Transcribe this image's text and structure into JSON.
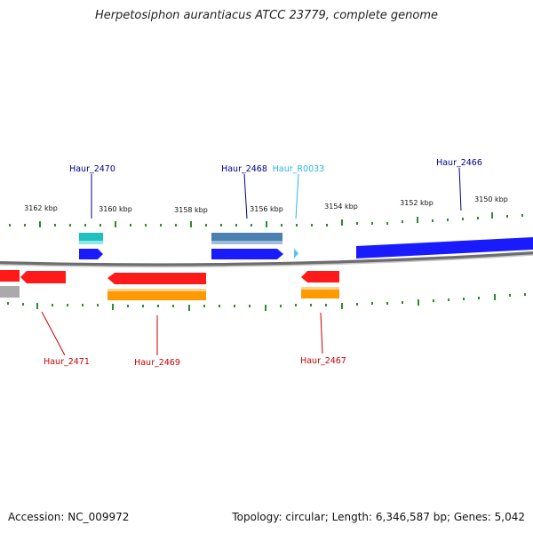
{
  "title": "Herpetosiphon aurantiacus ATCC 23779, complete genome",
  "footer": {
    "accession": "Accession: NC_009972",
    "summary": "Topology: circular; Length: 6,346,587 bp; Genes: 5,042"
  },
  "colors": {
    "backbone": "#7a7a7a",
    "tick": "#2e8b2e",
    "plus_label": "#00008b",
    "rna_label": "#29b6e8",
    "minus_label": "#cc0000",
    "cds_plus": "#1a1aff",
    "cds_minus": "#ff1a1a",
    "rna": "#4fc3f7",
    "feat_teal": "#20c0c0",
    "feat_steel": "#4a7fb0",
    "feat_orange": "#ff9900",
    "feat_grey": "#aaaaaa"
  },
  "scale": {
    "kbp_labels": [
      "3162 kbp",
      "3160 kbp",
      "3158 kbp",
      "3156 kbp",
      "3154 kbp",
      "3152 kbp",
      "3150 kbp"
    ]
  },
  "genes": [
    {
      "id": "Haur_2470",
      "strand": "+",
      "type": "CDS"
    },
    {
      "id": "Haur_2468",
      "strand": "+",
      "type": "CDS"
    },
    {
      "id": "Haur_R0033",
      "strand": "+",
      "type": "RNA"
    },
    {
      "id": "Haur_2466",
      "strand": "+",
      "type": "CDS"
    },
    {
      "id": "Haur_2471",
      "strand": "-",
      "type": "CDS"
    },
    {
      "id": "Haur_2469",
      "strand": "-",
      "type": "CDS"
    },
    {
      "id": "Haur_2467",
      "strand": "-",
      "type": "CDS"
    }
  ]
}
